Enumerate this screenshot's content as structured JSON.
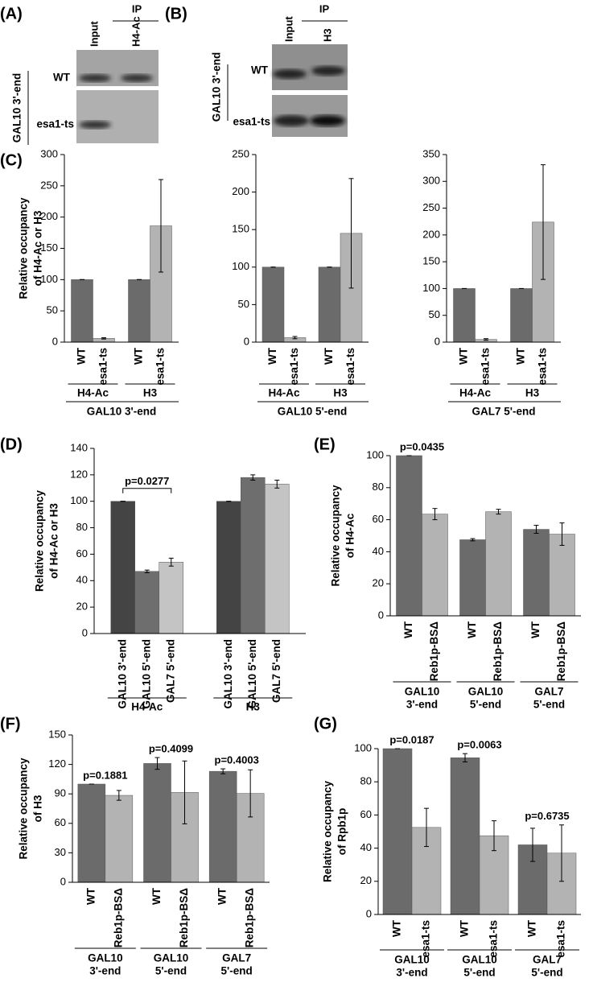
{
  "gels": [
    {
      "panel": "(A)",
      "ip_label": "IP",
      "lanes": [
        "Input",
        "H4-Ac"
      ],
      "rows": [
        "WT",
        "esa1-ts"
      ],
      "side_label": "GAL10 3'-end"
    },
    {
      "panel": "(B)",
      "ip_label": "IP",
      "lanes": [
        "Input",
        "H3"
      ],
      "rows": [
        "WT",
        "esa1-ts"
      ],
      "side_label": "GAL10 3'-end"
    }
  ],
  "chart_data": [
    {
      "type": "bar",
      "panel": "(C)",
      "ylabel": [
        "Relative occupancy",
        "of H4-Ac or H3"
      ],
      "categories": [
        "H4-Ac",
        "H3"
      ],
      "xlabel": "GAL10 3'-end",
      "series": [
        {
          "name": "WT",
          "color": "#6b6b6b",
          "values": [
            100,
            100
          ],
          "errors": [
            0,
            0
          ]
        },
        {
          "name": "esa1-ts",
          "color": "#b3b3b3",
          "values": [
            6,
            186
          ],
          "errors": [
            1,
            74
          ]
        }
      ],
      "ylim": [
        0,
        300
      ],
      "yticks": [
        0,
        50,
        100,
        150,
        200,
        250,
        300
      ]
    },
    {
      "type": "bar",
      "categories": [
        "H4-Ac",
        "H3"
      ],
      "xlabel": "GAL10 5'-end",
      "series": [
        {
          "name": "WT",
          "color": "#6b6b6b",
          "values": [
            100,
            100
          ],
          "errors": [
            0,
            0
          ]
        },
        {
          "name": "esa1-ts",
          "color": "#b3b3b3",
          "values": [
            6,
            145
          ],
          "errors": [
            1.5,
            73
          ]
        }
      ],
      "ylim": [
        0,
        250
      ],
      "yticks": [
        0,
        50,
        100,
        150,
        200,
        250
      ]
    },
    {
      "type": "bar",
      "categories": [
        "H4-Ac",
        "H3"
      ],
      "xlabel": "GAL7 5'-end",
      "series": [
        {
          "name": "WT",
          "color": "#6b6b6b",
          "values": [
            100,
            100
          ],
          "errors": [
            0,
            0
          ]
        },
        {
          "name": "esa1-ts",
          "color": "#b3b3b3",
          "values": [
            5,
            224
          ],
          "errors": [
            1.5,
            107
          ]
        }
      ],
      "ylim": [
        0,
        350
      ],
      "yticks": [
        0,
        50,
        100,
        150,
        200,
        250,
        300,
        350
      ]
    },
    {
      "type": "bar",
      "panel": "(D)",
      "ylabel": [
        "Relative occupancy",
        "of H4-Ac or H3"
      ],
      "categories": [
        "H4-Ac",
        "H3"
      ],
      "series": [
        {
          "name": "GAL10 3'-end",
          "color": "#444444",
          "values": [
            100,
            100
          ],
          "errors": [
            0,
            0
          ]
        },
        {
          "name": "GAL10 5'-end",
          "color": "#6e6e6e",
          "values": [
            47,
            118
          ],
          "errors": [
            1,
            2
          ]
        },
        {
          "name": "GAL7 5'-end",
          "color": "#c4c4c4",
          "values": [
            54,
            113
          ],
          "errors": [
            3,
            3
          ]
        }
      ],
      "p_values": [
        "p=0.0277",
        null
      ],
      "bracket": true,
      "ylim": [
        0,
        140
      ],
      "yticks": [
        0,
        20,
        40,
        60,
        80,
        100,
        120,
        140
      ]
    },
    {
      "type": "bar",
      "panel": "(E)",
      "ylabel": [
        "Relative occupancy",
        "of H4-Ac"
      ],
      "categories": [
        [
          "GAL10",
          "3'-end"
        ],
        [
          "GAL10",
          "5'-end"
        ],
        [
          "GAL7",
          "5'-end"
        ]
      ],
      "series": [
        {
          "name": "WT",
          "color": "#6b6b6b",
          "values": [
            100,
            47.5,
            54
          ],
          "errors": [
            0,
            0.7,
            2.5
          ]
        },
        {
          "name": "Reb1p-BSΔ",
          "color": "#b3b3b3",
          "values": [
            63.5,
            65,
            51
          ],
          "errors": [
            3.5,
            1.5,
            7
          ]
        }
      ],
      "p_values": [
        "p=0.0435",
        null,
        null
      ],
      "ylim": [
        0,
        100
      ],
      "yticks": [
        0,
        20,
        40,
        60,
        80,
        100
      ]
    },
    {
      "type": "bar",
      "panel": "(F)",
      "ylabel": [
        "Relative occupancy",
        "of H3"
      ],
      "categories": [
        [
          "GAL10",
          "3'-end"
        ],
        [
          "GAL10",
          "5'-end"
        ],
        [
          "GAL7",
          "5'-end"
        ]
      ],
      "series": [
        {
          "name": "WT",
          "color": "#6b6b6b",
          "values": [
            100,
            121,
            113
          ],
          "errors": [
            0,
            6,
            2.5
          ]
        },
        {
          "name": "Reb1p-BSΔ",
          "color": "#b3b3b3",
          "values": [
            88.5,
            91.5,
            90.5
          ],
          "errors": [
            5,
            32,
            24
          ]
        }
      ],
      "p_values": [
        "p=0.1881",
        "p=0.4099",
        "p=0.4003"
      ],
      "ylim": [
        0,
        150
      ],
      "yticks": [
        0,
        30,
        60,
        90,
        120,
        150
      ]
    },
    {
      "type": "bar",
      "panel": "(G)",
      "ylabel": [
        "Relative occupancy",
        "of Rpb1p"
      ],
      "categories": [
        [
          "GAL10",
          "3'-end"
        ],
        [
          "GAL10",
          "5'-end"
        ],
        [
          "GAL7",
          "5'-end"
        ]
      ],
      "series": [
        {
          "name": "WT",
          "color": "#6b6b6b",
          "values": [
            100,
            94.5,
            42
          ],
          "errors": [
            0,
            2.5,
            10
          ]
        },
        {
          "name": "esa1-ts",
          "color": "#b3b3b3",
          "values": [
            52.5,
            47.5,
            37
          ],
          "errors": [
            11.5,
            9,
            17
          ]
        }
      ],
      "p_values": [
        "p=0.0187",
        "p=0.0063",
        "p=0.6735"
      ],
      "ylim": [
        0,
        100
      ],
      "yticks": [
        0,
        20,
        40,
        60,
        80,
        100
      ]
    }
  ]
}
